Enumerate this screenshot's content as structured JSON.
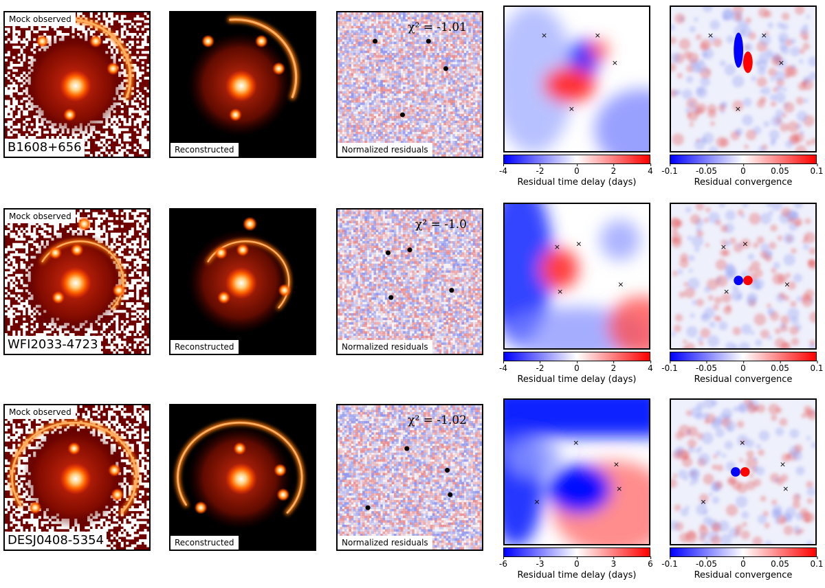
{
  "rows": [
    {
      "lens_name": "B1608+656",
      "observed_label": "Mock observed",
      "reconstructed_label": "Reconstructed",
      "residuals_label": "Normalized residuals",
      "chi2_text": "χ² = -1.01",
      "delay_ticks": [
        "-4",
        "-2",
        "0",
        "2",
        "4"
      ],
      "delay_label": "Residual time delay (days)",
      "conv_ticks": [
        "-0.1",
        "-0.05",
        "0",
        "0.05",
        "0.1"
      ],
      "conv_label": "Residual convergence"
    },
    {
      "lens_name": "WFI2033-4723",
      "observed_label": "Mock observed",
      "reconstructed_label": "Reconstructed",
      "residuals_label": "Normalized residuals",
      "chi2_text": "χ² = -1.0",
      "delay_ticks": [
        "-4",
        "-2",
        "0",
        "2",
        "4"
      ],
      "delay_label": "Residual time delay (days)",
      "conv_ticks": [
        "-0.1",
        "-0.05",
        "0",
        "0.05",
        "0.1"
      ],
      "conv_label": "Residual convergence"
    },
    {
      "lens_name": "DESJ0408-5354",
      "observed_label": "Mock observed",
      "reconstructed_label": "Reconstructed",
      "residuals_label": "Normalized residuals",
      "chi2_text": "χ² = -1.02",
      "delay_ticks": [
        "-6",
        "-3",
        "0",
        "3",
        "6"
      ],
      "delay_label": "Residual time delay (days)",
      "conv_ticks": [
        "-0.1",
        "-0.05",
        "0",
        "0.05",
        "0.1"
      ],
      "conv_label": "Residual convergence"
    }
  ],
  "chart_data": [
    {
      "type": "heatmap",
      "title": "",
      "lens": "B1608+656",
      "image_count": 4,
      "chi2": -1.01,
      "colorbar_range": [
        -4,
        4
      ],
      "colorbar_label": "Residual time delay (days)"
    },
    {
      "type": "heatmap",
      "title": "",
      "lens": "B1608+656",
      "colorbar_range": [
        -0.1,
        0.1
      ],
      "colorbar_label": "Residual convergence"
    },
    {
      "type": "heatmap",
      "title": "",
      "lens": "WFI2033-4723",
      "image_count": 4,
      "chi2": -1.0,
      "colorbar_range": [
        -4,
        4
      ],
      "colorbar_label": "Residual time delay (days)"
    },
    {
      "type": "heatmap",
      "title": "",
      "lens": "WFI2033-4723",
      "colorbar_range": [
        -0.1,
        0.1
      ],
      "colorbar_label": "Residual convergence"
    },
    {
      "type": "heatmap",
      "title": "",
      "lens": "DESJ0408-5354",
      "image_count": 4,
      "chi2": -1.02,
      "colorbar_range": [
        -6,
        6
      ],
      "colorbar_label": "Residual time delay (days)"
    },
    {
      "type": "heatmap",
      "title": "",
      "lens": "DESJ0408-5354",
      "colorbar_range": [
        -0.1,
        0.1
      ],
      "colorbar_label": "Residual convergence"
    }
  ],
  "colors": {
    "positive": "#ff0000",
    "negative": "#0000ff",
    "neutral": "#ffffff",
    "lens_bright": "#ffffff",
    "lens_mid": "#ff8c1a",
    "lens_dark": "#000000"
  }
}
